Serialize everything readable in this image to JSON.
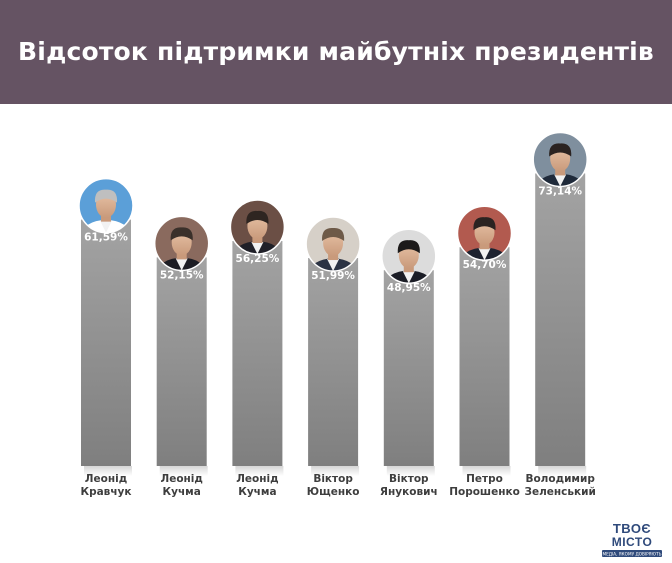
{
  "header": {
    "title": "Відсоток підтримки майбутніх президентів"
  },
  "colors": {
    "header_bg": "#655363",
    "bar_top": "#a3a3a3",
    "bar_bottom": "#7f7f7f",
    "value_label": "#ffffff",
    "category_label": "#3e3e3e"
  },
  "chart_data": {
    "type": "bar",
    "title": "Відсоток підтримки майбутніх президентів",
    "categories": [
      "Леонід\nКравчук",
      "Леонід\nКучма",
      "Леонід\nКучма",
      "Віктор\nЮщенко",
      "Віктор\nЯнукович",
      "Петро\nПорошенко",
      "Володимир\nЗеленський"
    ],
    "values": [
      61.59,
      52.15,
      56.25,
      51.99,
      48.95,
      54.7,
      73.14
    ],
    "value_labels": [
      "61,59%",
      "52,15%",
      "56,25%",
      "51,99%",
      "48,95%",
      "54,70%",
      "73,14%"
    ],
    "xlabel": "",
    "ylabel": "",
    "ylim": [
      0,
      100
    ],
    "grid": false,
    "legend": "none",
    "avatars": [
      "portrait-photo",
      "portrait-photo",
      "portrait-photo",
      "portrait-photo",
      "portrait-photo",
      "portrait-photo",
      "portrait-photo"
    ]
  },
  "logo": {
    "text": "ТВОЄ МІСТО",
    "tagline": "МЕДІА, ЯКОМУ ДОВІРЯЮТЬ"
  }
}
